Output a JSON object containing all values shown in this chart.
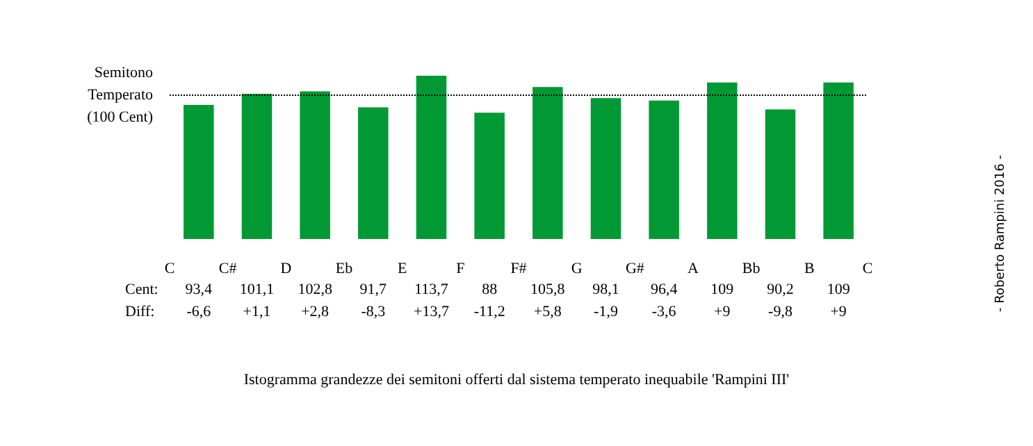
{
  "chart_data": {
    "type": "bar",
    "categories": [
      null,
      null,
      null,
      null,
      null,
      null,
      null,
      null,
      null,
      null,
      null,
      null
    ],
    "values": [
      93.4,
      101.1,
      102.8,
      91.7,
      113.7,
      88,
      105.8,
      98.1,
      96.4,
      109,
      90.2,
      109
    ],
    "value_labels": [
      "93,4",
      "101,1",
      "102,8",
      "91,7",
      "113,7",
      "88",
      "105,8",
      "98,1",
      "96,4",
      "109",
      "90,2",
      "109"
    ],
    "color": "#009933",
    "ref_lines": [
      {
        "axis": "y",
        "value": 100,
        "label": "Semitono\nTemperato\n(100 Cent)",
        "line_style": "dotted",
        "color": "#000000"
      }
    ],
    "annotations": [
      "Cent:",
      "Diff:",
      "-6,6",
      "+1,1",
      "+2,8",
      "-8,3",
      "+13,7",
      "-11,2",
      "+5,8",
      "-1,9",
      "-3,6",
      "+9",
      "-9,8",
      "+9",
      "C",
      "C#",
      "D",
      "Eb",
      "E",
      "F",
      "F#",
      "G",
      "G#",
      "A",
      "Bb",
      "B",
      "C",
      "Istogramma grandezze dei semitoni offerti dal sistema temperato inequabile 'Rampini III'",
      "- Roberto Rampini 2016 -"
    ]
  }
}
